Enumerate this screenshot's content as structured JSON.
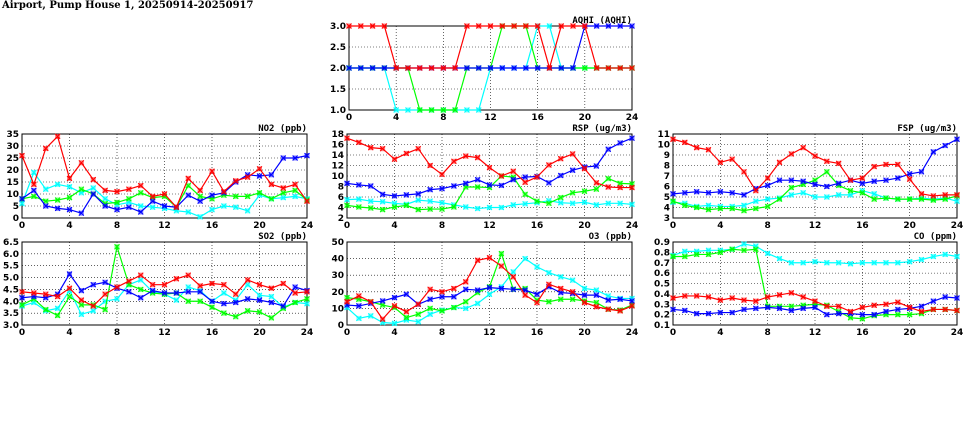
{
  "page_title": "Airport, Pump House 1, 20250914-20250917",
  "chart_data": [
    {
      "type": "line",
      "title": "AQHI (AQHI)",
      "xlim": [
        0,
        24
      ],
      "xticks": [
        "0",
        "4",
        "8",
        "12",
        "16",
        "20",
        "24"
      ],
      "ylim": [
        1,
        3
      ],
      "yticks": [
        "1.0",
        "1.5",
        "2.0",
        "2.5",
        "3.0"
      ],
      "grid": true,
      "series": [
        {
          "color": "#00ffff",
          "values": [
            2,
            2,
            2,
            2,
            1,
            1,
            1,
            1,
            1,
            1,
            1,
            1,
            2,
            2,
            2,
            2,
            3,
            3,
            2,
            2,
            2,
            2,
            2,
            2,
            2
          ]
        },
        {
          "color": "#00ff00",
          "values": [
            2,
            2,
            2,
            2,
            2,
            2,
            1,
            1,
            1,
            1,
            2,
            2,
            2,
            3,
            3,
            3,
            2,
            2,
            2,
            2,
            2,
            2,
            2,
            2,
            2
          ]
        },
        {
          "color": "#0000ff",
          "values": [
            2,
            2,
            2,
            2,
            2,
            2,
            2,
            2,
            2,
            2,
            2,
            2,
            2,
            2,
            2,
            2,
            2,
            2,
            2,
            2,
            3,
            3,
            3,
            3,
            3
          ]
        },
        {
          "color": "#ff0000",
          "values": [
            3,
            3,
            3,
            3,
            2,
            2,
            2,
            2,
            2,
            2,
            3,
            3,
            3,
            3,
            3,
            3,
            3,
            2,
            3,
            3,
            3,
            2,
            2,
            2,
            2
          ]
        }
      ]
    },
    {
      "type": "line",
      "title": "NO2 (ppb)",
      "xlim": [
        0,
        24
      ],
      "xticks": [
        "0",
        "4",
        "8",
        "12",
        "16",
        "20",
        "24"
      ],
      "ylim": [
        0,
        35
      ],
      "yticks": [
        "0",
        "5",
        "10",
        "15",
        "20",
        "25",
        "30",
        "35"
      ],
      "grid": true,
      "series": [
        {
          "color": "#00ffff",
          "values": [
            6,
            19,
            12,
            14,
            13,
            10.5,
            12.5,
            8,
            5.5,
            6.5,
            5,
            4.5,
            4,
            3,
            2.5,
            0.5,
            3.5,
            5,
            4.5,
            3,
            9.5,
            8,
            8.5,
            9,
            8
          ]
        },
        {
          "color": "#00ff00",
          "values": [
            8,
            9,
            7,
            7.5,
            8.5,
            12,
            10,
            6,
            6.5,
            8,
            10.5,
            8.5,
            9,
            4.5,
            13.5,
            9,
            8,
            9.5,
            9,
            9,
            10.5,
            8,
            10.5,
            11.5,
            7.5
          ]
        },
        {
          "color": "#0000ff",
          "values": [
            8,
            11.5,
            5,
            4,
            3.5,
            2,
            10,
            5,
            3.5,
            4.5,
            2.5,
            7,
            5,
            4.5,
            9.5,
            7,
            9.5,
            10.5,
            15,
            18,
            17.5,
            18,
            25,
            25,
            26
          ]
        },
        {
          "color": "#ff0000",
          "values": [
            26,
            14,
            29,
            34,
            16.5,
            23,
            16,
            11.5,
            11,
            12,
            13.5,
            9,
            10,
            4.5,
            16.5,
            11.5,
            19.5,
            11,
            15.5,
            17,
            20.5,
            14,
            12.5,
            14,
            7
          ]
        }
      ]
    },
    {
      "type": "line",
      "title": "RSP (ug/m3)",
      "xlim": [
        0,
        24
      ],
      "xticks": [
        "0",
        "4",
        "8",
        "12",
        "16",
        "20",
        "24"
      ],
      "ylim": [
        2,
        18
      ],
      "yticks": [
        "2",
        "4",
        "6",
        "8",
        "10",
        "12",
        "14",
        "16",
        "18"
      ],
      "grid": true,
      "series": [
        {
          "color": "#00ffff",
          "values": [
            5.5,
            5.6,
            5.2,
            5.1,
            4.8,
            4.6,
            5.4,
            5.2,
            4.9,
            4.5,
            4.1,
            3.8,
            4,
            4,
            4.5,
            4.7,
            4.9,
            5.3,
            4.9,
            4.8,
            5,
            4.5,
            4.8,
            4.8,
            4.6
          ]
        },
        {
          "color": "#00ff00",
          "values": [
            4.4,
            4.1,
            3.9,
            3.6,
            4.1,
            4.4,
            3.6,
            3.7,
            3.7,
            4.1,
            7.9,
            7.9,
            7.8,
            10,
            9.8,
            6.5,
            5.2,
            4.8,
            5.9,
            6.8,
            7.1,
            7.5,
            9.5,
            8.6,
            8.5
          ]
        },
        {
          "color": "#0000ff",
          "values": [
            8.6,
            8.3,
            8.1,
            6.5,
            6.2,
            6.4,
            6.6,
            7.4,
            7.6,
            8.1,
            8.6,
            9.3,
            8.3,
            8.2,
            9.3,
            9.8,
            9.9,
            8.7,
            10.1,
            11.1,
            11.7,
            11.9,
            15.1,
            16.3,
            17.2
          ]
        },
        {
          "color": "#ff0000",
          "values": [
            17.2,
            16.4,
            15.4,
            15.2,
            13.2,
            14.3,
            15.2,
            12,
            10.3,
            12.8,
            13.8,
            13.5,
            11.6,
            10,
            10.9,
            8.8,
            9.8,
            12.1,
            13.3,
            14.2,
            11.4,
            8.7,
            7.9,
            7.8,
            7.8
          ]
        }
      ]
    },
    {
      "type": "line",
      "title": "FSP (ug/m3)",
      "xlim": [
        0,
        24
      ],
      "xticks": [
        "0",
        "4",
        "8",
        "12",
        "16",
        "20",
        "24"
      ],
      "ylim": [
        3,
        11
      ],
      "yticks": [
        "3",
        "4",
        "5",
        "6",
        "7",
        "8",
        "9",
        "10",
        "11"
      ],
      "grid": true,
      "series": [
        {
          "color": "#00ffff",
          "values": [
            4.5,
            4.4,
            4.1,
            4.2,
            4.1,
            4.1,
            4.2,
            4.6,
            4.8,
            4.9,
            5.2,
            5.4,
            5,
            5,
            5.2,
            5.2,
            5.6,
            5.3,
            4.9,
            4.8,
            4.8,
            4.9,
            4.8,
            4.9,
            4.6
          ]
        },
        {
          "color": "#00ff00",
          "values": [
            4.6,
            4.2,
            4,
            3.8,
            3.9,
            3.9,
            3.7,
            3.9,
            4.1,
            4.8,
            5.9,
            6.2,
            6.6,
            7.4,
            6.1,
            5.6,
            5.4,
            4.8,
            4.9,
            4.8,
            4.8,
            4.8,
            4.7,
            4.8,
            5.1
          ]
        },
        {
          "color": "#0000ff",
          "values": [
            5.3,
            5.4,
            5.5,
            5.4,
            5.5,
            5.4,
            5.2,
            5.8,
            6.1,
            6.6,
            6.6,
            6.5,
            6.2,
            6,
            6.3,
            6.6,
            6.3,
            6.5,
            6.6,
            6.8,
            7.2,
            7.4,
            9.3,
            9.9,
            10.5
          ]
        },
        {
          "color": "#ff0000",
          "values": [
            10.5,
            10.2,
            9.7,
            9.5,
            8.3,
            8.6,
            7.4,
            5.6,
            6.8,
            8.3,
            9.1,
            9.7,
            8.9,
            8.4,
            8.2,
            6.6,
            6.8,
            7.9,
            8.1,
            8.1,
            6.7,
            5.3,
            5.1,
            5.2,
            5.2
          ]
        }
      ]
    },
    {
      "type": "line",
      "title": "SO2 (ppb)",
      "xlim": [
        0,
        24
      ],
      "xticks": [
        "0",
        "4",
        "8",
        "12",
        "16",
        "20",
        "24"
      ],
      "ylim": [
        3,
        6.5
      ],
      "yticks": [
        "3.0",
        "3.5",
        "4.0",
        "4.5",
        "5.0",
        "5.5",
        "6.0",
        "6.5"
      ],
      "grid": true,
      "series": [
        {
          "color": "#00ffff",
          "values": [
            3.8,
            3.95,
            3.6,
            3.7,
            4.45,
            3.45,
            3.6,
            4,
            4.1,
            4.7,
            4.9,
            4.4,
            4.3,
            4.05,
            4.6,
            4.45,
            4,
            4.35,
            4.05,
            4.7,
            4.25,
            4.2,
            3.75,
            3.95,
            3.9
          ]
        },
        {
          "color": "#00ff00",
          "values": [
            3.85,
            4.1,
            3.65,
            3.4,
            4.2,
            3.85,
            3.85,
            3.65,
            6.3,
            4.7,
            4.5,
            4.35,
            4.3,
            4.35,
            4,
            4,
            3.75,
            3.5,
            3.35,
            3.6,
            3.55,
            3.3,
            3.7,
            3.95,
            4.1
          ]
        },
        {
          "color": "#0000ff",
          "values": [
            4.15,
            4.2,
            4.15,
            4.3,
            5.15,
            4.45,
            4.7,
            4.8,
            4.55,
            4.4,
            4.15,
            4.45,
            4.35,
            4.35,
            4.4,
            4.4,
            4,
            3.9,
            3.95,
            4.1,
            4.05,
            3.95,
            3.8,
            4.6,
            4.45
          ]
        },
        {
          "color": "#ff0000",
          "values": [
            4.4,
            4.35,
            4.3,
            4.2,
            4.55,
            4.05,
            3.8,
            4.3,
            4.6,
            4.85,
            5.1,
            4.7,
            4.7,
            4.95,
            5.1,
            4.65,
            4.75,
            4.7,
            4.3,
            4.9,
            4.7,
            4.55,
            4.75,
            4.35,
            4.4
          ]
        }
      ]
    },
    {
      "type": "line",
      "title": "O3 (ppb)",
      "xlim": [
        0,
        24
      ],
      "xticks": [
        "0",
        "4",
        "8",
        "12",
        "16",
        "20",
        "24"
      ],
      "ylim": [
        0,
        50
      ],
      "yticks": [
        "0",
        "10",
        "20",
        "30",
        "40",
        "50"
      ],
      "grid": true,
      "series": [
        {
          "color": "#00ffff",
          "values": [
            10.5,
            4,
            5.5,
            1.5,
            1,
            3,
            2,
            6.5,
            9,
            10.5,
            10,
            13,
            18.5,
            23,
            32,
            40,
            35,
            31.5,
            29,
            27,
            22,
            21,
            17.5,
            16,
            16
          ]
        },
        {
          "color": "#00ff00",
          "values": [
            16.5,
            15.5,
            14,
            12,
            10.5,
            4.5,
            6.5,
            10,
            8.5,
            10.5,
            14,
            19.5,
            23,
            43,
            21.5,
            22,
            15,
            14,
            15.5,
            15.5,
            14.5,
            13.5,
            9.5,
            9,
            12
          ]
        },
        {
          "color": "#0000ff",
          "values": [
            12,
            11.5,
            13,
            14.5,
            16.5,
            18.5,
            12.5,
            15.5,
            17,
            17,
            21.5,
            21,
            22.5,
            22,
            21.5,
            21,
            18.5,
            23,
            19.5,
            19,
            18,
            18,
            15,
            15.5,
            14.5
          ]
        },
        {
          "color": "#ff0000",
          "values": [
            14,
            17.5,
            14,
            3.5,
            11.5,
            8,
            12.5,
            21.5,
            20,
            22,
            26,
            39,
            40.5,
            35.5,
            29,
            18,
            13.5,
            24.5,
            22,
            20,
            13.5,
            11,
            9.5,
            8.5,
            11.5
          ]
        }
      ]
    },
    {
      "type": "line",
      "title": "CO (ppm)",
      "xlim": [
        0,
        24
      ],
      "xticks": [
        "0",
        "4",
        "8",
        "12",
        "16",
        "20",
        "24"
      ],
      "ylim": [
        0.1,
        0.9
      ],
      "yticks": [
        "0.1",
        "0.2",
        "0.3",
        "0.4",
        "0.5",
        "0.6",
        "0.7",
        "0.8",
        "0.9"
      ],
      "grid": true,
      "series": [
        {
          "color": "#00ffff",
          "values": [
            0.77,
            0.81,
            0.81,
            0.82,
            0.82,
            0.83,
            0.88,
            0.86,
            0.79,
            0.74,
            0.7,
            0.7,
            0.71,
            0.7,
            0.7,
            0.69,
            0.7,
            0.7,
            0.7,
            0.7,
            0.71,
            0.73,
            0.76,
            0.78,
            0.76
          ]
        },
        {
          "color": "#00ff00",
          "values": [
            0.76,
            0.76,
            0.78,
            0.78,
            0.8,
            0.83,
            0.82,
            0.83,
            0.28,
            0.28,
            0.28,
            0.29,
            0.3,
            0.29,
            0.23,
            0.17,
            0.16,
            0.19,
            0.2,
            0.2,
            0.2,
            0.21,
            0.25,
            0.25,
            0.24
          ]
        },
        {
          "color": "#0000ff",
          "values": [
            0.25,
            0.24,
            0.21,
            0.21,
            0.22,
            0.22,
            0.25,
            0.26,
            0.27,
            0.26,
            0.24,
            0.26,
            0.27,
            0.2,
            0.21,
            0.21,
            0.2,
            0.2,
            0.23,
            0.25,
            0.26,
            0.28,
            0.33,
            0.37,
            0.36
          ]
        },
        {
          "color": "#ff0000",
          "values": [
            0.36,
            0.38,
            0.38,
            0.37,
            0.34,
            0.36,
            0.34,
            0.33,
            0.37,
            0.39,
            0.41,
            0.37,
            0.33,
            0.28,
            0.28,
            0.23,
            0.27,
            0.29,
            0.3,
            0.32,
            0.27,
            0.23,
            0.25,
            0.25,
            0.24
          ]
        }
      ]
    }
  ]
}
